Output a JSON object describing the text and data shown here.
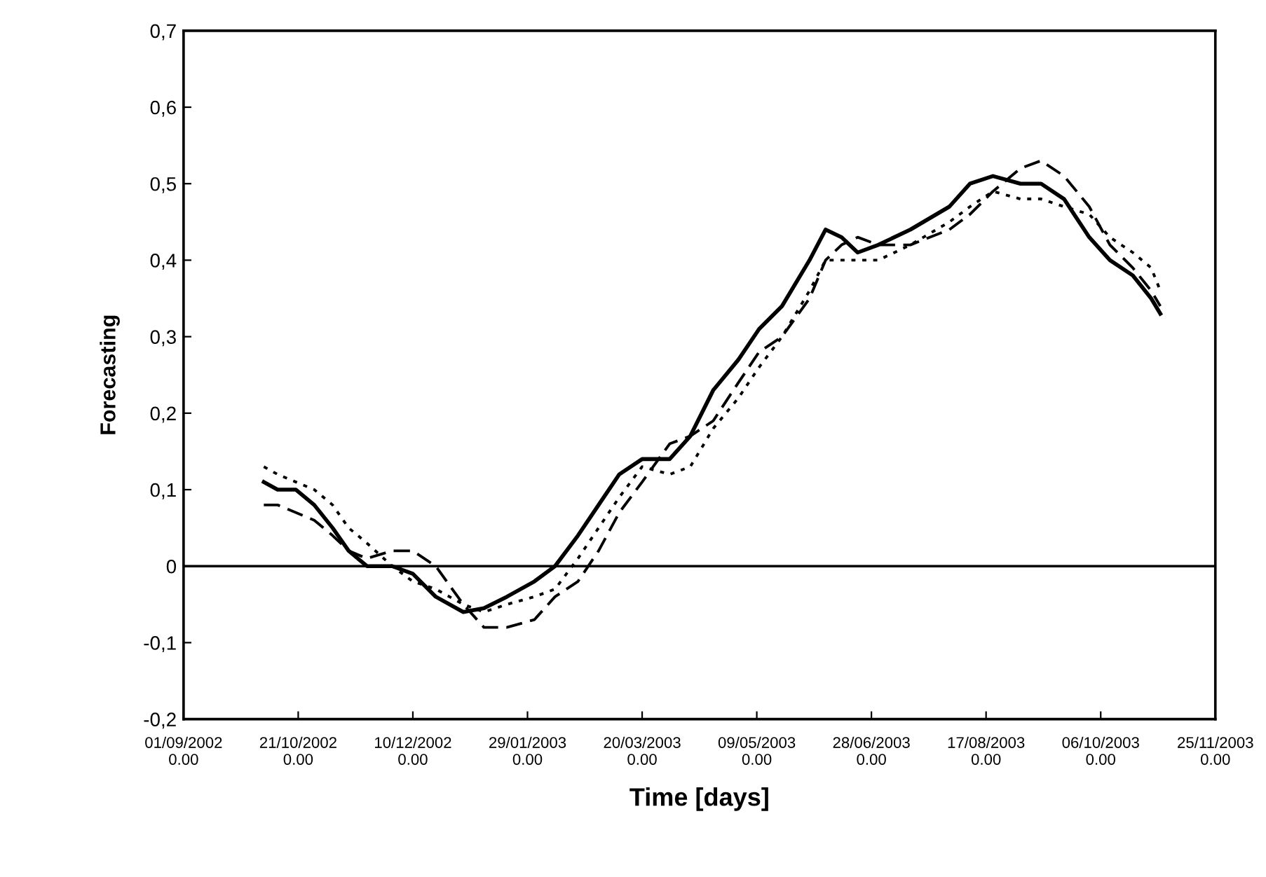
{
  "chart_data": {
    "type": "line",
    "xlabel": "Time [days]",
    "ylabel": "Forecasting",
    "x": [
      "2002-10-06",
      "2002-10-12",
      "2002-10-20",
      "2002-10-28",
      "2002-11-05",
      "2002-11-12",
      "2002-11-20",
      "2002-12-01",
      "2002-12-10",
      "2002-12-20",
      "2003-01-01",
      "2003-01-10",
      "2003-01-20",
      "2003-02-01",
      "2003-02-10",
      "2003-02-20",
      "2003-03-01",
      "2003-03-10",
      "2003-03-20",
      "2003-04-01",
      "2003-04-10",
      "2003-04-20",
      "2003-05-01",
      "2003-05-10",
      "2003-05-20",
      "2003-06-01",
      "2003-06-08",
      "2003-06-15",
      "2003-06-22",
      "2003-07-01",
      "2003-07-15",
      "2003-08-01",
      "2003-08-10",
      "2003-08-20",
      "2003-09-01",
      "2003-09-10",
      "2003-09-20",
      "2003-10-01",
      "2003-10-10",
      "2003-10-20",
      "2003-10-28",
      "2003-11-01"
    ],
    "series": [
      {
        "color": "#000000",
        "line_style": "solid",
        "values": [
          0.11,
          0.1,
          0.1,
          0.08,
          0.05,
          0.02,
          0.0,
          0.0,
          -0.01,
          -0.04,
          -0.06,
          -0.055,
          -0.04,
          -0.02,
          0.0,
          0.04,
          0.08,
          0.12,
          0.14,
          0.14,
          0.17,
          0.23,
          0.27,
          0.31,
          0.34,
          0.4,
          0.44,
          0.43,
          0.41,
          0.42,
          0.44,
          0.47,
          0.5,
          0.51,
          0.5,
          0.5,
          0.48,
          0.43,
          0.4,
          0.38,
          0.35,
          0.33
        ]
      },
      {
        "color": "#000000",
        "line_style": "dashed",
        "values": [
          0.08,
          0.08,
          0.07,
          0.06,
          0.04,
          0.02,
          0.01,
          0.02,
          0.02,
          0.0,
          -0.05,
          -0.08,
          -0.08,
          -0.07,
          -0.04,
          -0.02,
          0.02,
          0.07,
          0.11,
          0.16,
          0.17,
          0.19,
          0.24,
          0.28,
          0.3,
          0.35,
          0.4,
          0.42,
          0.43,
          0.42,
          0.42,
          0.44,
          0.46,
          0.49,
          0.52,
          0.53,
          0.51,
          0.47,
          0.42,
          0.39,
          0.36,
          0.34
        ]
      },
      {
        "color": "#000000",
        "line_style": "dotted",
        "values": [
          0.13,
          0.12,
          0.11,
          0.1,
          0.08,
          0.05,
          0.03,
          0.0,
          -0.02,
          -0.03,
          -0.05,
          -0.06,
          -0.05,
          -0.04,
          -0.03,
          0.01,
          0.05,
          0.09,
          0.13,
          0.12,
          0.13,
          0.18,
          0.22,
          0.26,
          0.3,
          0.36,
          0.4,
          0.4,
          0.4,
          0.4,
          0.42,
          0.45,
          0.47,
          0.49,
          0.48,
          0.48,
          0.47,
          0.46,
          0.43,
          0.41,
          0.39,
          0.36
        ]
      }
    ],
    "xlim": [
      "2002-09-01",
      "2003-11-25"
    ],
    "xticks": [
      {
        "value": "2002-09-01",
        "label": "01/09/2002\n0.00"
      },
      {
        "value": "2002-10-21",
        "label": "21/10/2002\n0.00"
      },
      {
        "value": "2002-12-10",
        "label": "10/12/2002\n0.00"
      },
      {
        "value": "2003-01-29",
        "label": "29/01/2003\n0.00"
      },
      {
        "value": "2003-03-20",
        "label": "20/03/2003\n0.00"
      },
      {
        "value": "2003-05-09",
        "label": "09/05/2003\n0.00"
      },
      {
        "value": "2003-06-28",
        "label": "28/06/2003\n0.00"
      },
      {
        "value": "2003-08-17",
        "label": "17/08/2003\n0.00"
      },
      {
        "value": "2003-10-06",
        "label": "06/10/2003\n0.00"
      },
      {
        "value": "2003-11-25",
        "label": "25/11/2003\n0.00"
      }
    ],
    "ylim": [
      -0.2,
      0.7
    ],
    "yticks": [
      {
        "value": -0.2,
        "label": "-0,2"
      },
      {
        "value": -0.1,
        "label": "-0,1"
      },
      0,
      {
        "value": 0.1,
        "label": "0,1"
      },
      {
        "value": 0.2,
        "label": "0,2"
      },
      {
        "value": 0.3,
        "label": "0,3"
      },
      {
        "value": 0.4,
        "label": "0,4"
      },
      {
        "value": 0.5,
        "label": "0,5"
      },
      {
        "value": 0.6,
        "label": "0,6"
      },
      {
        "value": 0.7,
        "label": "0,7"
      }
    ],
    "ref_lines": [
      {
        "axis": "y",
        "value": 0,
        "color": "#000000",
        "line_style": "solid"
      }
    ],
    "grid": false
  }
}
